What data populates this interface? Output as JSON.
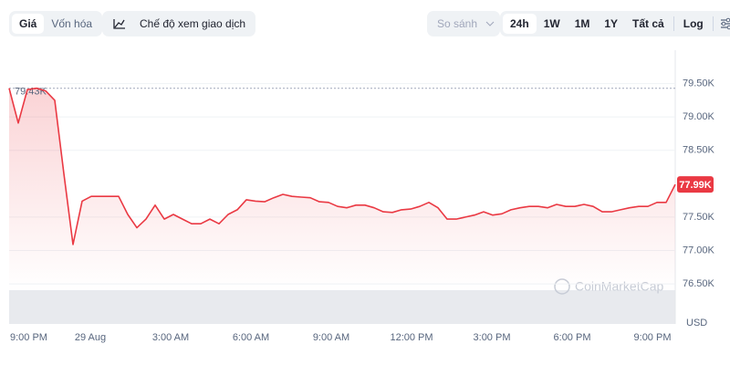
{
  "toolbar": {
    "left": [
      "Giá",
      "Vốn hóa"
    ],
    "view": "Chế độ xem giao dịch",
    "compare": "So sánh",
    "ranges": [
      "24h",
      "1W",
      "1M",
      "1Y",
      "Tất cả"
    ],
    "log": "Log"
  },
  "chart_data": {
    "type": "line",
    "color": "#ea3943",
    "currency": "USD",
    "watermark": "CoinMarketCap",
    "xlabels": [
      "9:00 PM",
      "29 Aug",
      "3:00 AM",
      "6:00 AM",
      "9:00 AM",
      "12:00 PM",
      "3:00 PM",
      "6:00 PM",
      "9:00 PM"
    ],
    "values": [
      79430,
      78910,
      79410,
      79430,
      79390,
      79250,
      78150,
      77090,
      77740,
      77810,
      77810,
      77810,
      77810,
      77540,
      77340,
      77470,
      77680,
      77470,
      77540,
      77470,
      77400,
      77400,
      77470,
      77400,
      77540,
      77610,
      77760,
      77740,
      77730,
      77790,
      77840,
      77810,
      77800,
      77790,
      77730,
      77720,
      77660,
      77640,
      77680,
      77680,
      77640,
      77580,
      77570,
      77610,
      77620,
      77660,
      77720,
      77640,
      77470,
      77470,
      77500,
      77530,
      77580,
      77530,
      77550,
      77610,
      77640,
      77660,
      77660,
      77640,
      77690,
      77660,
      77660,
      77690,
      77660,
      77580,
      77580,
      77610,
      77640,
      77660,
      77660,
      77720,
      77720,
      77990
    ],
    "current_label": {
      "value": 77990,
      "label": "77.99K"
    },
    "high_label": {
      "value": 79430,
      "label": "79.43K"
    },
    "ylim": [
      75900,
      80000
    ],
    "yticks": [
      {
        "value": 76500,
        "label": "76.50K"
      },
      {
        "value": 77000,
        "label": "77.00K"
      },
      {
        "value": 77500,
        "label": "77.50K"
      },
      {
        "value": 78500,
        "label": "78.50K"
      },
      {
        "value": 79000,
        "label": "79.00K"
      },
      {
        "value": 79500,
        "label": "79.50K"
      }
    ],
    "grid": true
  }
}
